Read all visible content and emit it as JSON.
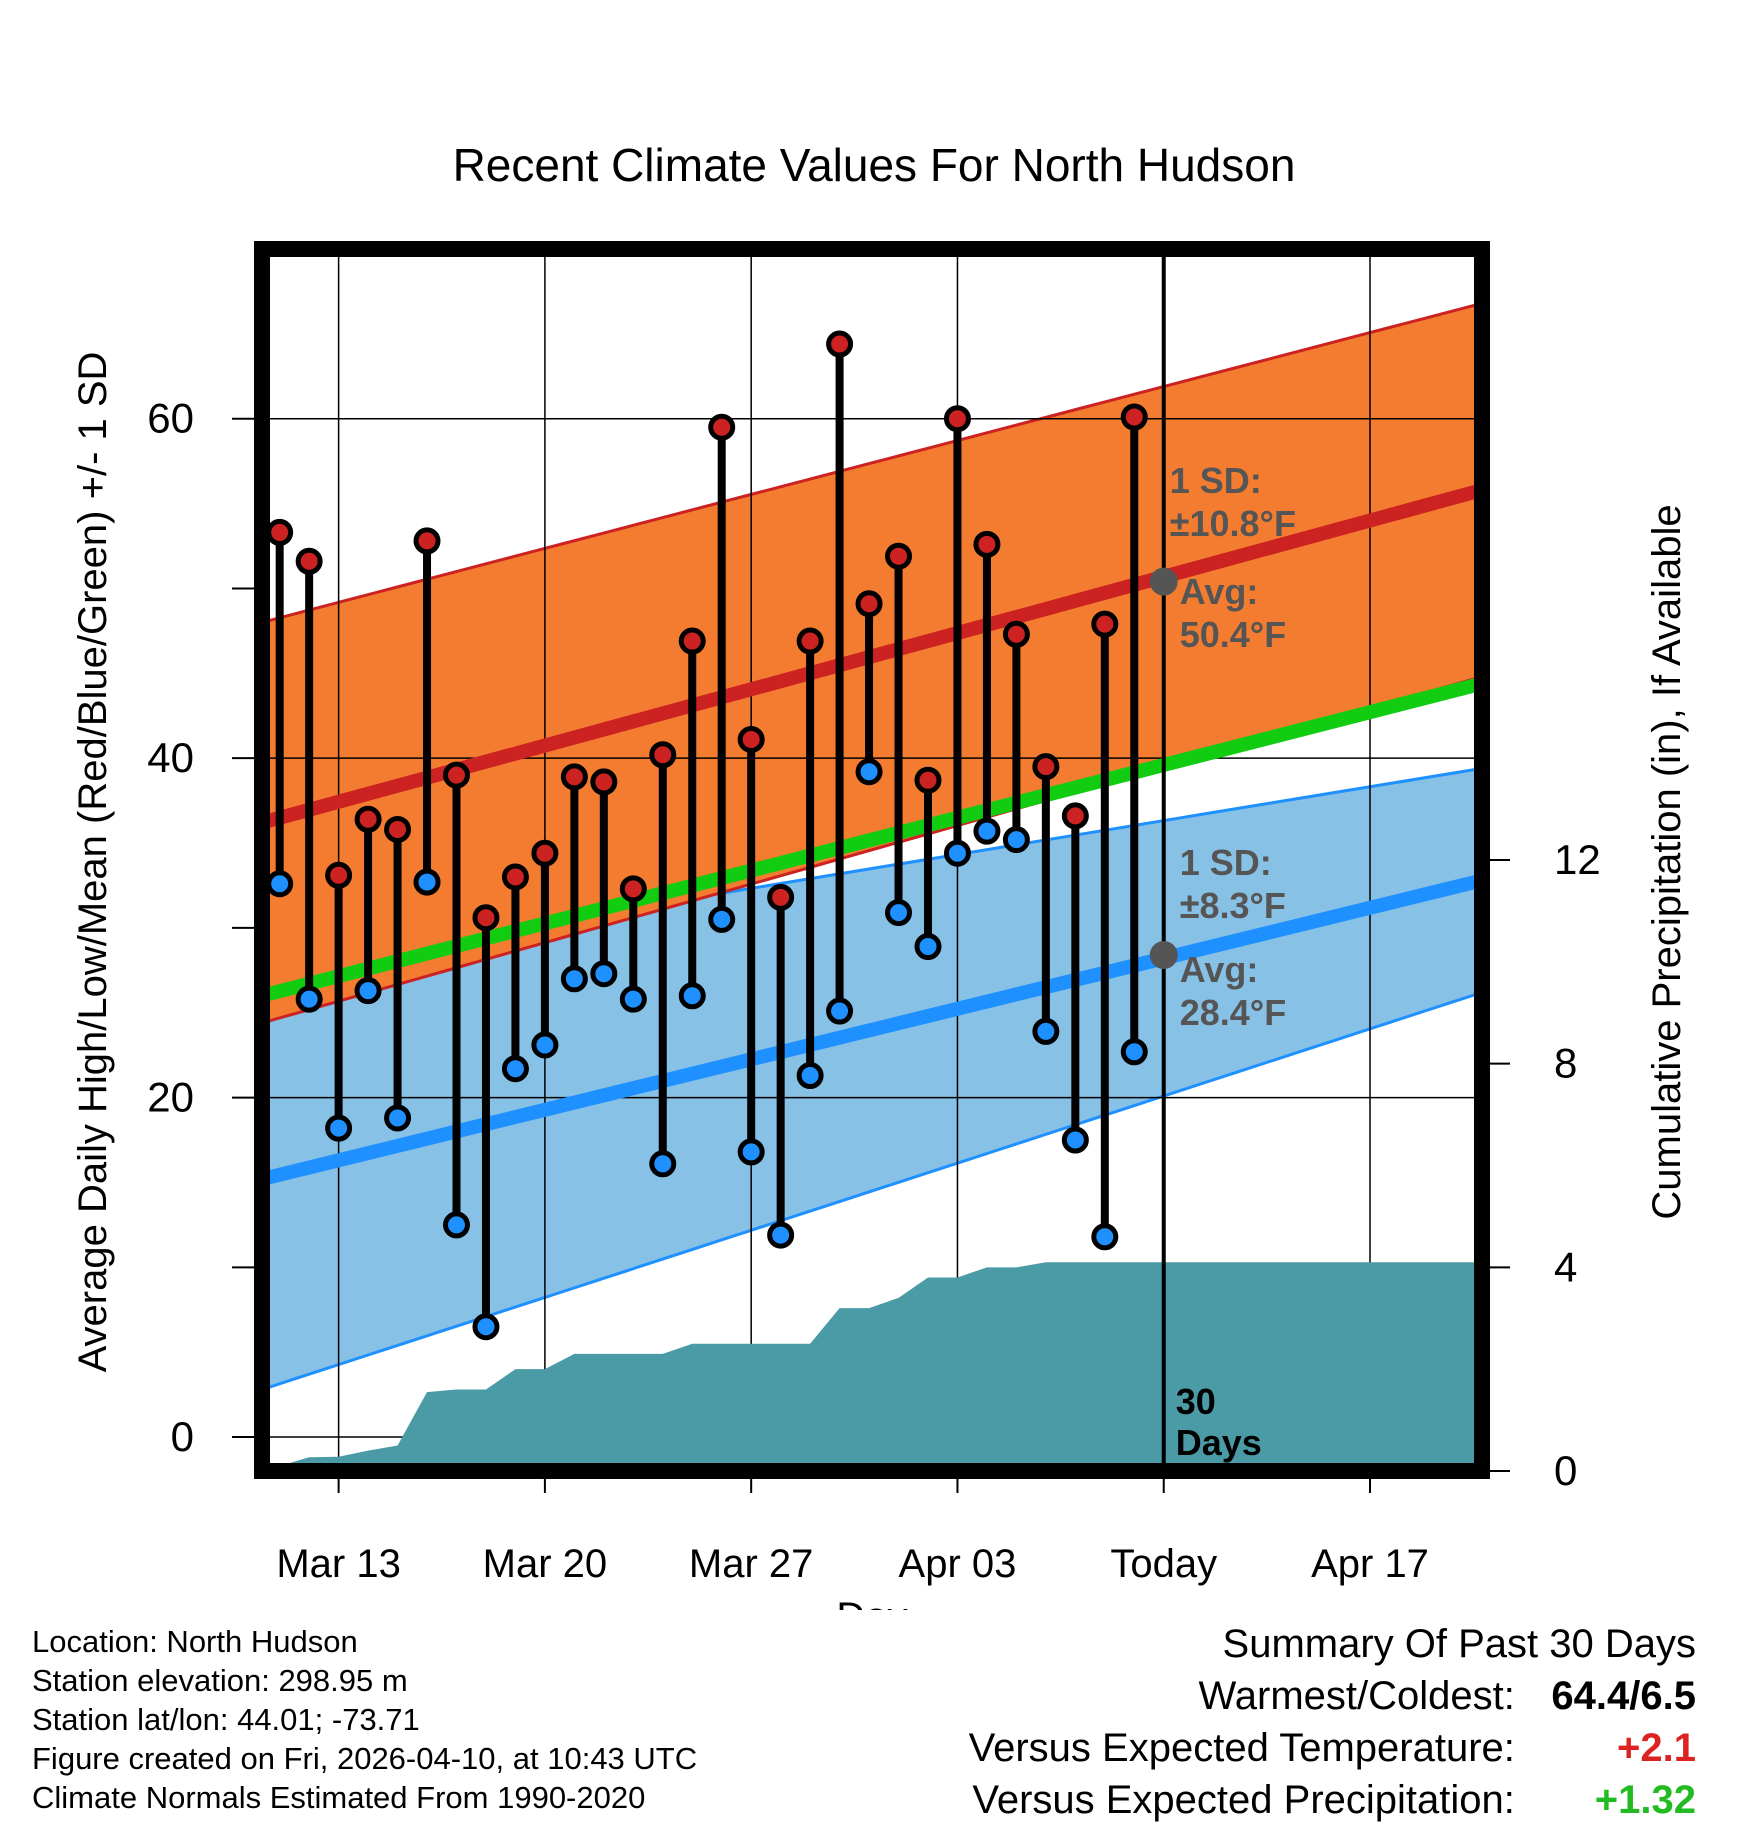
{
  "chart_data": {
    "type": "line",
    "title": "Recent Climate Values For North Hudson",
    "xlabel": "Day",
    "ylabel": "Average Daily High/Low/Mean (Red/Blue/Green) +/- 1 SD",
    "y2label": "Cumulative Precipitation (in), If Available",
    "ylim": [
      -2,
      70
    ],
    "y2lim": [
      0,
      24
    ],
    "xlim": [
      -30.6,
      10.8
    ],
    "x_ticks": [
      {
        "day": -28,
        "label": "Mar 13"
      },
      {
        "day": -21,
        "label": "Mar 20"
      },
      {
        "day": -14,
        "label": "Mar 27"
      },
      {
        "day": -7,
        "label": "Apr 03"
      },
      {
        "day": 0,
        "label": "Today"
      },
      {
        "day": 7,
        "label": "Apr 17"
      }
    ],
    "y_ticks": [
      "0",
      "20",
      "40",
      "60"
    ],
    "y2_ticks": [
      "0",
      "4",
      "8",
      "12"
    ],
    "normal_high": {
      "start": 36.2,
      "end": 55.8,
      "sd_start": 11.8,
      "sd_end": 11.0
    },
    "normal_low": {
      "start": 15.2,
      "end": 32.8,
      "sd_start": 12.4,
      "sd_end": 6.6
    },
    "normal_mean": {
      "start": 26.0,
      "end": 44.4
    },
    "today_marker": {
      "label_line1": "30",
      "label_line2": "Days",
      "high": {
        "avg": 50.4,
        "avg_label": "Avg:",
        "avg_text": "50.4°F",
        "sd_label": "1 SD:",
        "sd_text": "±10.8°F"
      },
      "low": {
        "avg": 28.4,
        "avg_label": "Avg:",
        "avg_text": "28.4°F",
        "sd_label": "1 SD:",
        "sd_text": "±8.3°F"
      }
    },
    "days": [
      -30,
      -29,
      -28,
      -27,
      -26,
      -25,
      -24,
      -23,
      -22,
      -21,
      -20,
      -19,
      -18,
      -17,
      -16,
      -15,
      -14,
      -13,
      -12,
      -11,
      -10,
      -9,
      -8,
      -7,
      -6,
      -5,
      -4,
      -3,
      -2,
      -1
    ],
    "series": [
      {
        "name": "Daily High",
        "color": "#cc2222",
        "values": [
          53.3,
          51.6,
          33.1,
          36.4,
          35.8,
          52.8,
          39.0,
          30.6,
          33.0,
          34.4,
          38.9,
          38.6,
          32.3,
          40.2,
          46.9,
          59.5,
          41.1,
          31.8,
          46.9,
          64.4,
          49.1,
          51.9,
          38.7,
          60.0,
          52.6,
          47.3,
          39.5,
          36.6,
          47.9,
          60.1
        ]
      },
      {
        "name": "Daily Low",
        "color": "#1e90ff",
        "values": [
          32.6,
          25.8,
          18.2,
          26.3,
          18.8,
          32.7,
          12.5,
          6.5,
          21.7,
          23.1,
          27.0,
          27.3,
          25.8,
          16.1,
          26.0,
          30.5,
          16.8,
          11.9,
          21.3,
          25.1,
          39.2,
          30.9,
          28.9,
          34.4,
          35.7,
          35.2,
          23.9,
          17.5,
          11.8,
          22.7
        ]
      },
      {
        "name": "Cumulative Precipitation",
        "color": "#4a9ba5",
        "x": [
          -30.6,
          -30,
          -29,
          -28,
          -27,
          -26,
          -25,
          -24,
          -23,
          -22,
          -21,
          -20,
          -19,
          -18,
          -17,
          -16,
          -15,
          -14,
          -13,
          -12,
          -11,
          -10,
          -9,
          -8,
          -7,
          -6,
          -5,
          -4,
          -3,
          -2,
          -1,
          0,
          10.8
        ],
        "values": [
          0.0,
          0.1,
          0.27,
          0.28,
          0.4,
          0.5,
          1.55,
          1.6,
          1.6,
          2.0,
          2.0,
          2.3,
          2.3,
          2.3,
          2.3,
          2.5,
          2.5,
          2.5,
          2.5,
          2.5,
          3.2,
          3.2,
          3.4,
          3.8,
          3.8,
          4.0,
          4.0,
          4.1,
          4.1,
          4.1,
          4.1,
          4.1,
          4.1
        ]
      }
    ]
  },
  "station": {
    "location": "Location: North Hudson",
    "elevation": "Station elevation: 298.95 m",
    "latlon": "Station lat/lon: 44.01; -73.71",
    "created": "Figure created on Fri, 2026-04-10, at 10:43 UTC",
    "normals": "Climate Normals Estimated From 1990-2020"
  },
  "summary": {
    "title": "Summary Of Past 30 Days",
    "warmest_label": "Warmest/Coldest:",
    "warmest_value": "64.4/6.5",
    "temp_label": "Versus Expected Temperature:",
    "temp_value": "+2.1",
    "temp_color": "#dd2222",
    "precip_label": "Versus Expected Precipitation:",
    "precip_value": "+1.32",
    "precip_color": "#22bb22"
  }
}
